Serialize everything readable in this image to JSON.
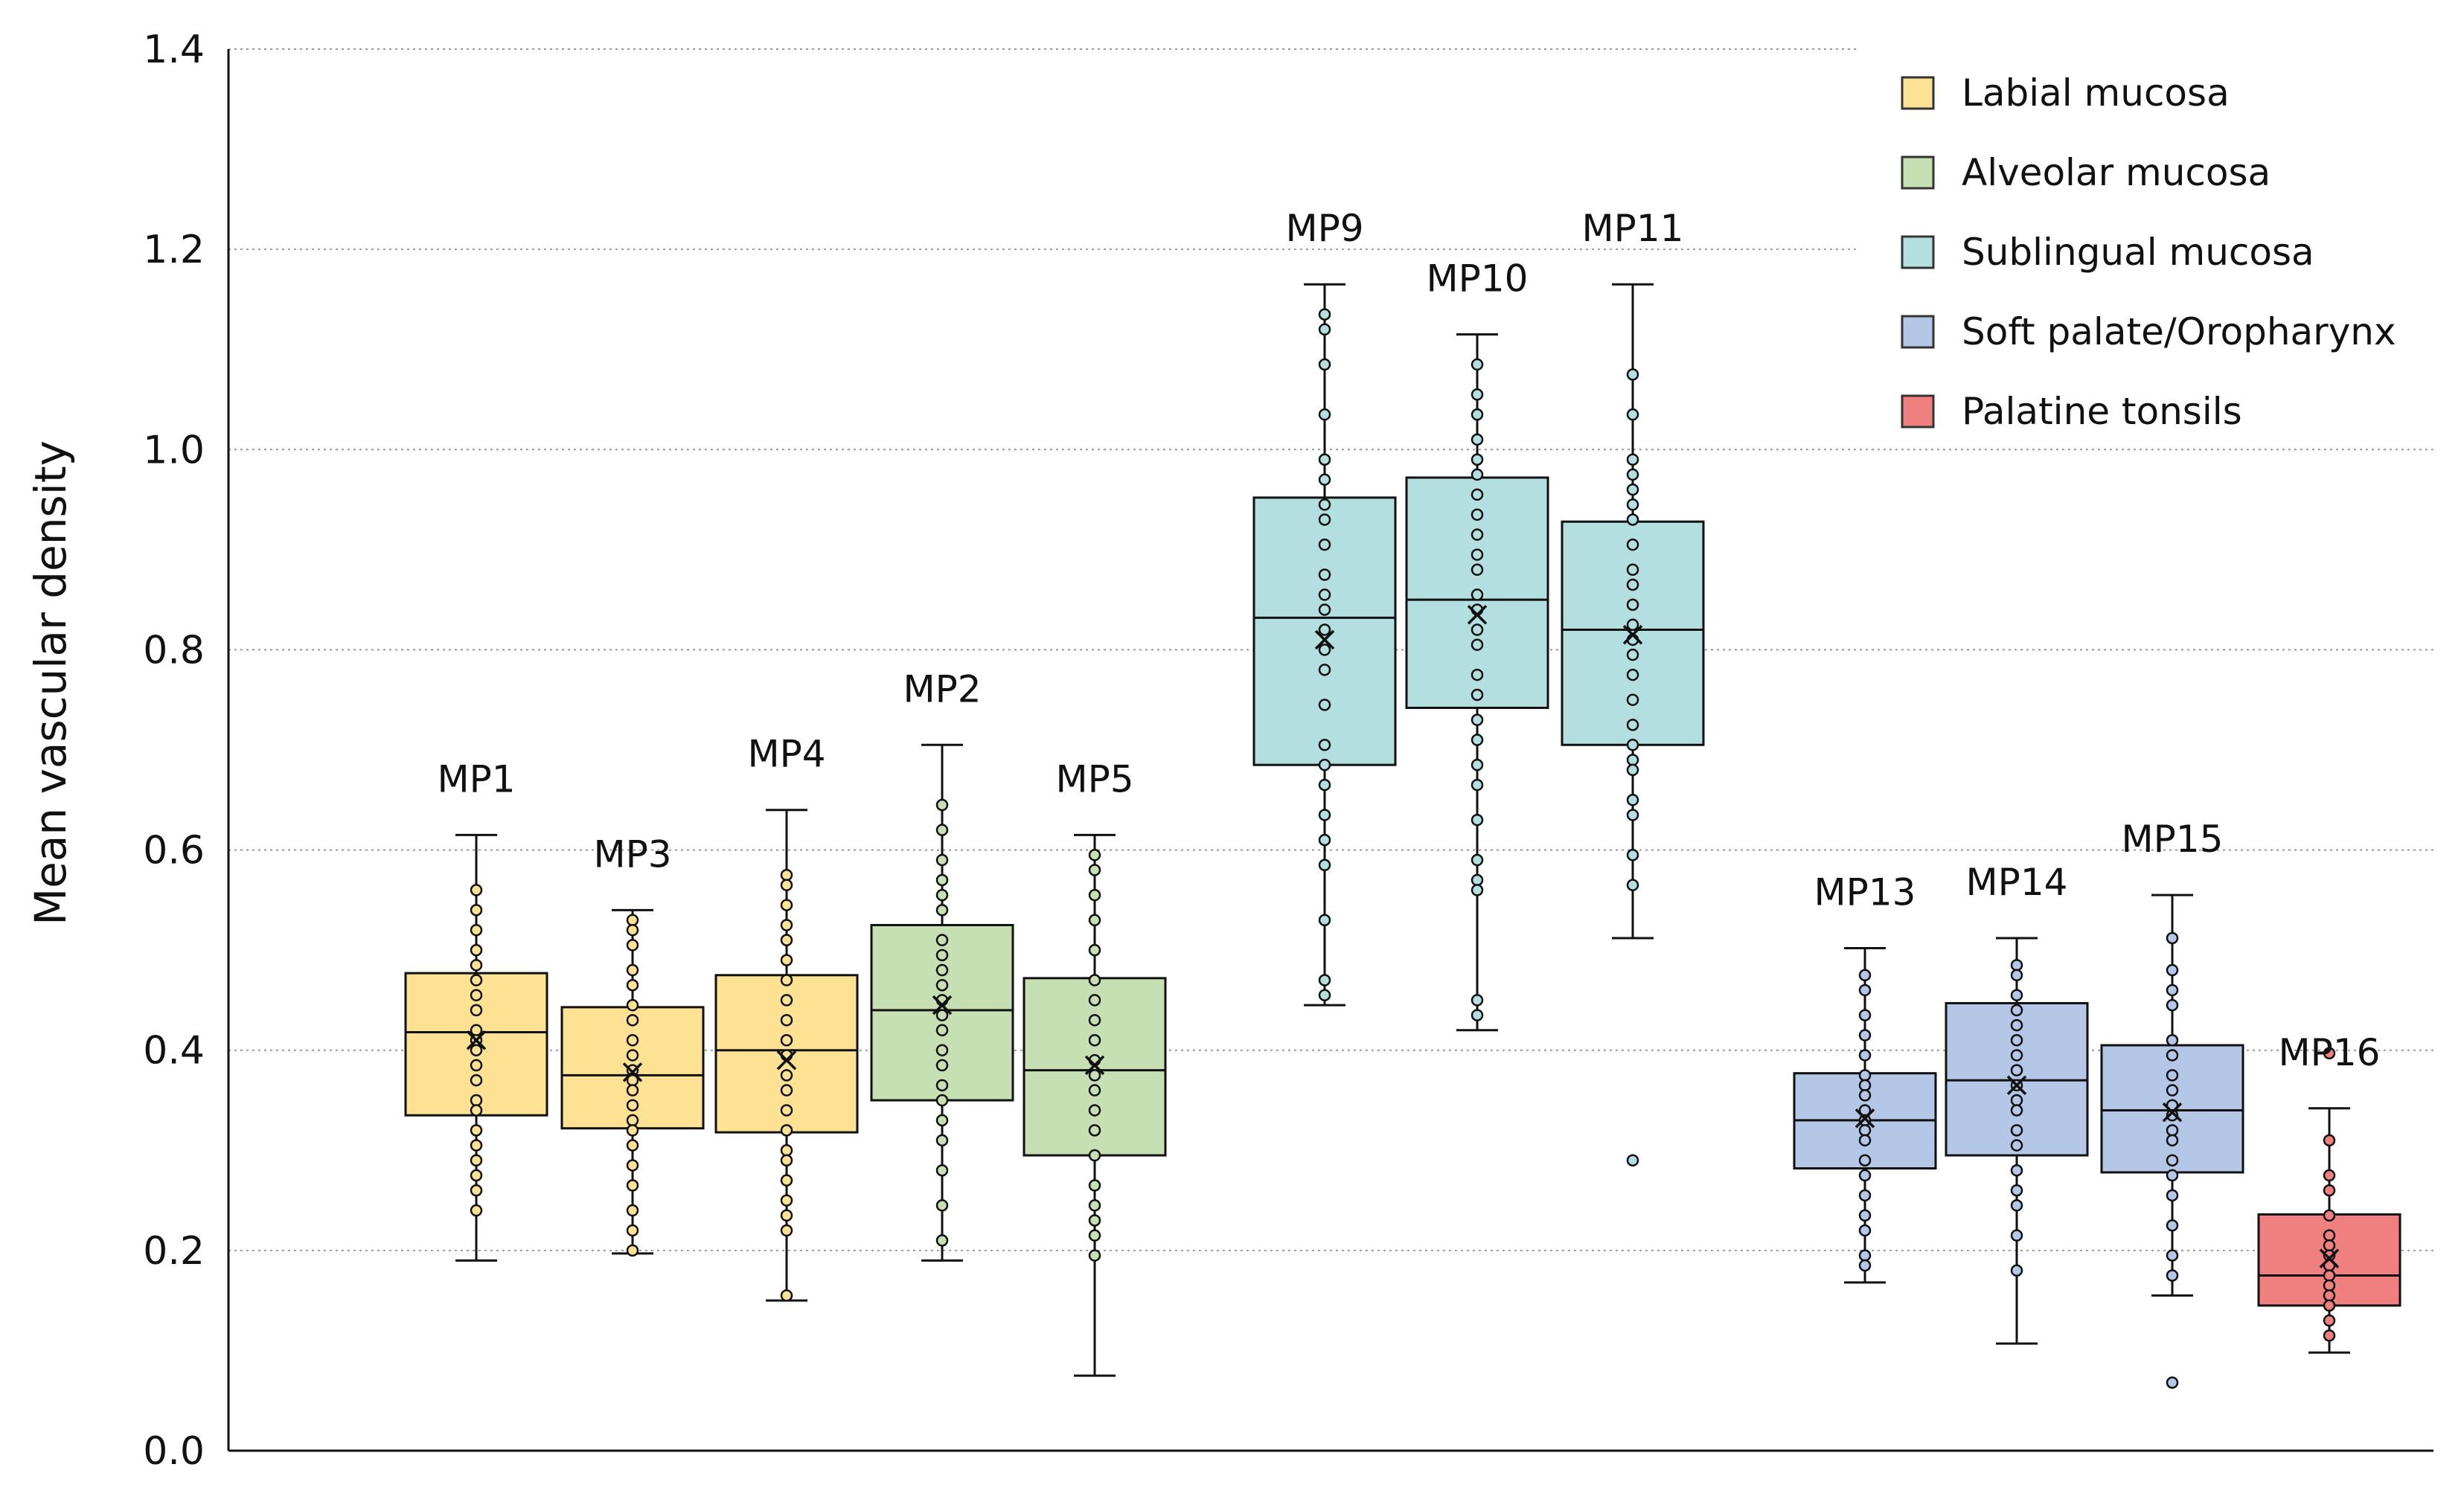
{
  "chart_data": {
    "type": "box",
    "title": "",
    "xlabel": "",
    "ylabel": "Mean vascular density",
    "ylim": [
      0.0,
      1.4
    ],
    "yticks": [
      "0.0",
      "0.2",
      "0.4",
      "0.6",
      "0.8",
      "1.0",
      "1.2",
      "1.4"
    ],
    "grid": "horizontal-dotted",
    "legend_position": "top-right",
    "legend": [
      {
        "name": "Labial mucosa",
        "color": "#fde293"
      },
      {
        "name": "Alveolar mucosa",
        "color": "#c6e0b4"
      },
      {
        "name": "Sublingual mucosa",
        "color": "#b4dfe1"
      },
      {
        "name": "Soft palate/Oropharynx",
        "color": "#b4c7e7"
      },
      {
        "name": "Palatine tonsils",
        "color": "#f08080"
      }
    ],
    "boxes": [
      {
        "label": "MP1",
        "group": "Labial mucosa",
        "color": "#fde293",
        "whisker_low": 0.19,
        "q1": 0.335,
        "median": 0.418,
        "q3": 0.477,
        "whisker_high": 0.615,
        "mean": 0.41,
        "points": [
          0.56,
          0.54,
          0.52,
          0.5,
          0.485,
          0.47,
          0.455,
          0.44,
          0.42,
          0.41,
          0.4,
          0.385,
          0.37,
          0.35,
          0.34,
          0.32,
          0.305,
          0.29,
          0.275,
          0.26,
          0.24
        ],
        "outliers": []
      },
      {
        "label": "MP3",
        "group": "Labial mucosa",
        "color": "#fde293",
        "whisker_low": 0.197,
        "q1": 0.322,
        "median": 0.375,
        "q3": 0.443,
        "whisker_high": 0.54,
        "mean": 0.378,
        "points": [
          0.53,
          0.52,
          0.505,
          0.48,
          0.465,
          0.445,
          0.43,
          0.41,
          0.395,
          0.38,
          0.37,
          0.36,
          0.345,
          0.33,
          0.32,
          0.305,
          0.285,
          0.265,
          0.24,
          0.22,
          0.2
        ],
        "outliers": []
      },
      {
        "label": "MP4",
        "group": "Labial mucosa",
        "color": "#fde293",
        "whisker_low": 0.15,
        "q1": 0.318,
        "median": 0.4,
        "q3": 0.475,
        "whisker_high": 0.64,
        "mean": 0.39,
        "points": [
          0.575,
          0.565,
          0.545,
          0.525,
          0.51,
          0.49,
          0.47,
          0.45,
          0.43,
          0.41,
          0.395,
          0.375,
          0.36,
          0.34,
          0.32,
          0.3,
          0.29,
          0.27,
          0.25,
          0.235,
          0.22,
          0.155
        ],
        "outliers": []
      },
      {
        "label": "MP2",
        "group": "Alveolar mucosa",
        "color": "#c6e0b4",
        "whisker_low": 0.19,
        "q1": 0.35,
        "median": 0.44,
        "q3": 0.525,
        "whisker_high": 0.705,
        "mean": 0.445,
        "points": [
          0.645,
          0.62,
          0.59,
          0.57,
          0.555,
          0.54,
          0.51,
          0.495,
          0.48,
          0.465,
          0.45,
          0.435,
          0.42,
          0.4,
          0.385,
          0.365,
          0.35,
          0.33,
          0.31,
          0.28,
          0.245,
          0.21
        ],
        "outliers": []
      },
      {
        "label": "MP5",
        "group": "Alveolar mucosa",
        "color": "#c6e0b4",
        "whisker_low": 0.075,
        "q1": 0.295,
        "median": 0.38,
        "q3": 0.472,
        "whisker_high": 0.615,
        "mean": 0.385,
        "points": [
          0.595,
          0.58,
          0.555,
          0.53,
          0.5,
          0.47,
          0.45,
          0.43,
          0.41,
          0.39,
          0.375,
          0.36,
          0.34,
          0.32,
          0.295,
          0.265,
          0.245,
          0.23,
          0.215,
          0.195
        ],
        "outliers": []
      },
      {
        "label": "MP9",
        "group": "Sublingual mucosa",
        "color": "#b4dfe1",
        "whisker_low": 0.445,
        "q1": 0.685,
        "median": 0.832,
        "q3": 0.952,
        "whisker_high": 1.165,
        "mean": 0.81,
        "points": [
          1.135,
          1.12,
          1.085,
          1.035,
          0.99,
          0.97,
          0.945,
          0.93,
          0.905,
          0.875,
          0.855,
          0.84,
          0.82,
          0.8,
          0.78,
          0.745,
          0.705,
          0.685,
          0.665,
          0.635,
          0.61,
          0.585,
          0.53,
          0.47,
          0.455
        ],
        "outliers": []
      },
      {
        "label": "MP10",
        "group": "Sublingual mucosa",
        "color": "#b4dfe1",
        "whisker_low": 0.42,
        "q1": 0.742,
        "median": 0.85,
        "q3": 0.972,
        "whisker_high": 1.115,
        "mean": 0.835,
        "points": [
          1.085,
          1.055,
          1.035,
          1.01,
          0.99,
          0.975,
          0.955,
          0.935,
          0.915,
          0.895,
          0.88,
          0.855,
          0.84,
          0.82,
          0.805,
          0.775,
          0.755,
          0.73,
          0.71,
          0.685,
          0.665,
          0.63,
          0.59,
          0.57,
          0.56,
          0.45,
          0.435
        ],
        "outliers": []
      },
      {
        "label": "MP11",
        "group": "Sublingual mucosa",
        "color": "#b4dfe1",
        "whisker_low": 0.512,
        "q1": 0.705,
        "median": 0.82,
        "q3": 0.928,
        "whisker_high": 1.165,
        "mean": 0.815,
        "points": [
          1.075,
          1.035,
          0.99,
          0.975,
          0.96,
          0.945,
          0.93,
          0.905,
          0.88,
          0.865,
          0.845,
          0.825,
          0.81,
          0.795,
          0.775,
          0.75,
          0.725,
          0.705,
          0.69,
          0.68,
          0.65,
          0.635,
          0.595,
          0.565
        ],
        "outliers": [
          0.29
        ]
      },
      {
        "label": "MP13",
        "group": "Soft palate/Oropharynx",
        "color": "#b4c7e7",
        "whisker_low": 0.168,
        "q1": 0.282,
        "median": 0.33,
        "q3": 0.377,
        "whisker_high": 0.502,
        "mean": 0.332,
        "points": [
          0.475,
          0.46,
          0.435,
          0.415,
          0.395,
          0.375,
          0.365,
          0.355,
          0.34,
          0.33,
          0.32,
          0.31,
          0.29,
          0.275,
          0.255,
          0.235,
          0.22,
          0.195,
          0.185
        ],
        "outliers": []
      },
      {
        "label": "MP14",
        "group": "Soft palate/Oropharynx",
        "color": "#b4c7e7",
        "whisker_low": 0.107,
        "q1": 0.295,
        "median": 0.37,
        "q3": 0.447,
        "whisker_high": 0.512,
        "mean": 0.365,
        "points": [
          0.485,
          0.475,
          0.455,
          0.44,
          0.425,
          0.41,
          0.395,
          0.38,
          0.365,
          0.35,
          0.34,
          0.32,
          0.305,
          0.28,
          0.26,
          0.245,
          0.215,
          0.18
        ],
        "outliers": []
      },
      {
        "label": "MP15",
        "group": "Soft palate/Oropharynx",
        "color": "#b4c7e7",
        "whisker_low": 0.155,
        "q1": 0.278,
        "median": 0.34,
        "q3": 0.405,
        "whisker_high": 0.555,
        "mean": 0.338,
        "points": [
          0.512,
          0.48,
          0.46,
          0.445,
          0.41,
          0.395,
          0.375,
          0.36,
          0.345,
          0.335,
          0.32,
          0.31,
          0.29,
          0.275,
          0.255,
          0.225,
          0.195,
          0.175
        ],
        "outliers": [
          0.068
        ]
      },
      {
        "label": "MP16",
        "group": "Palatine tonsils",
        "color": "#f08080",
        "whisker_low": 0.098,
        "q1": 0.145,
        "median": 0.175,
        "q3": 0.236,
        "whisker_high": 0.342,
        "mean": 0.192,
        "points": [
          0.31,
          0.275,
          0.26,
          0.235,
          0.215,
          0.205,
          0.195,
          0.185,
          0.175,
          0.165,
          0.155,
          0.145,
          0.13,
          0.115
        ],
        "outliers": [
          0.397
        ]
      }
    ]
  }
}
